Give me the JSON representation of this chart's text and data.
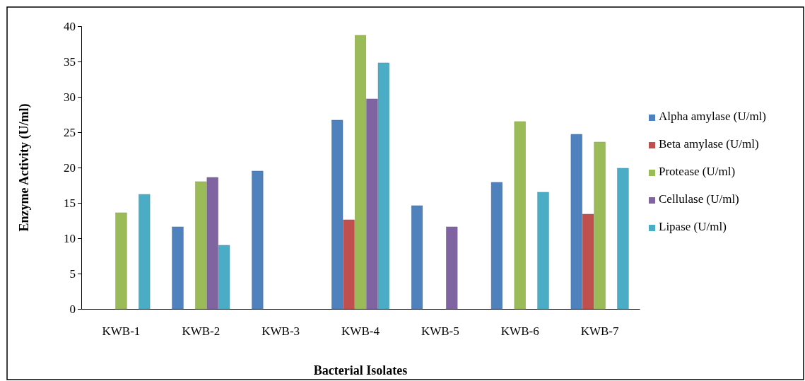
{
  "chart_data": {
    "type": "bar",
    "xlabel": "Bacterial Isolates",
    "ylabel": "Enzyme Activity (U/ml)",
    "categories": [
      "KWB-1",
      "KWB-2",
      "KWB-3",
      "KWB-4",
      "KWB-5",
      "KWB-6",
      "KWB-7"
    ],
    "series": [
      {
        "name": "Alpha amylase  (U/ml)",
        "color": "#4f81bd",
        "values": [
          0,
          11.6,
          19.5,
          26.7,
          14.6,
          17.9,
          24.7
        ]
      },
      {
        "name": "Beta amylase (U/ml)",
        "color": "#c0504d",
        "values": [
          0,
          0,
          0,
          12.6,
          0,
          0,
          13.4
        ]
      },
      {
        "name": "Protease (U/ml)",
        "color": "#9bbb59",
        "values": [
          13.6,
          18,
          0,
          38.7,
          0,
          26.5,
          23.6
        ]
      },
      {
        "name": "Cellulase (U/ml)",
        "color": "#8064a2",
        "values": [
          0,
          18.6,
          0,
          29.7,
          11.6,
          0,
          0
        ]
      },
      {
        "name": "Lipase (U/ml)",
        "color": "#4bacc6",
        "values": [
          16.2,
          9,
          0,
          34.8,
          0,
          16.5,
          19.9
        ]
      }
    ],
    "ylim": [
      0,
      40
    ],
    "yticks": [
      0,
      5,
      10,
      15,
      20,
      25,
      30,
      35,
      40
    ],
    "legend": "right"
  }
}
